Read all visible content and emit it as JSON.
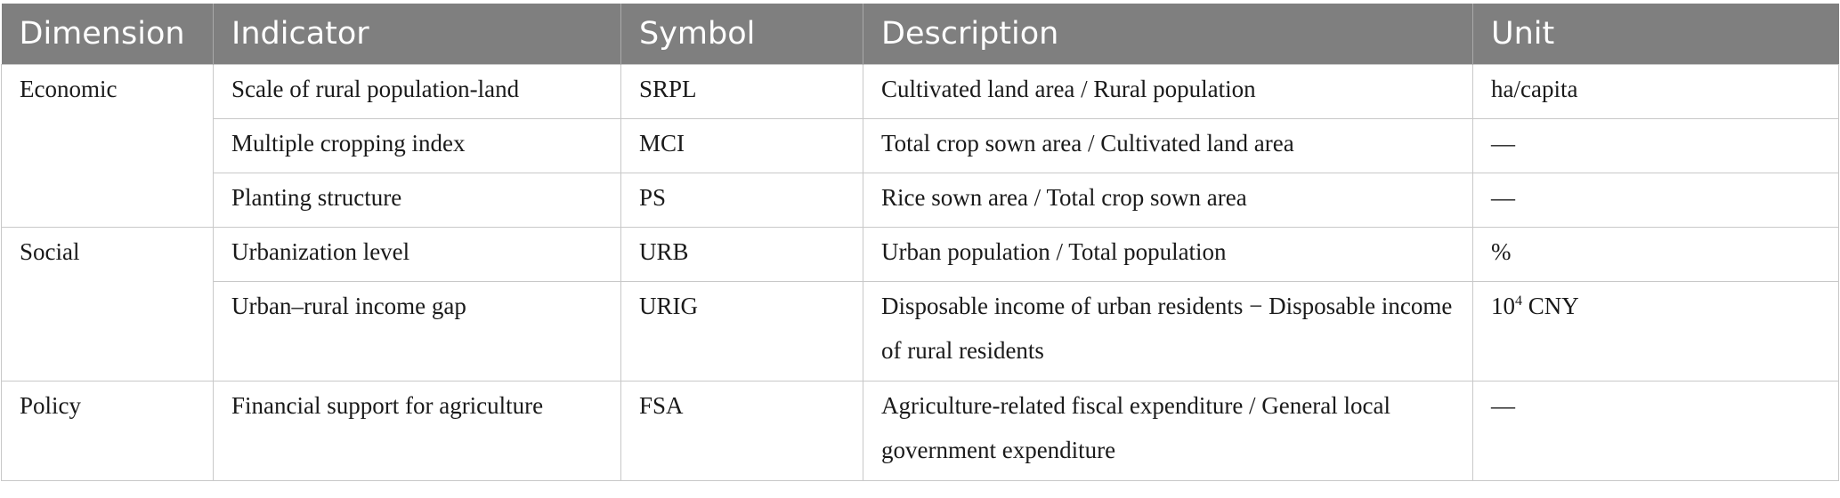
{
  "table": {
    "headers": [
      "Dimension",
      "Indicator",
      "Symbol",
      "Description",
      "Unit"
    ],
    "groups": {
      "economic": "Economic",
      "social": "Social",
      "policy": "Policy"
    },
    "rows": [
      {
        "indicator": "Scale of rural population-land",
        "symbol": "SRPL",
        "description": "Cultivated land area / Rural population",
        "unit": "ha/capita"
      },
      {
        "indicator": "Multiple cropping index",
        "symbol": "MCI",
        "description": "Total crop sown area / Cultivated land area",
        "unit": "—"
      },
      {
        "indicator": "Planting structure",
        "symbol": "PS",
        "description": "Rice sown area / Total crop sown area",
        "unit": "—"
      },
      {
        "indicator": "Urbanization level",
        "symbol": "URB",
        "description": "Urban population / Total population",
        "unit": "%"
      },
      {
        "indicator": "Urban–rural income gap",
        "symbol": "URIG",
        "description": "Disposable income of urban residents − Disposable income of rural residents",
        "unit_base": "10",
        "unit_exp": "4",
        "unit_rest": " CNY"
      },
      {
        "indicator": "Financial support for agriculture",
        "symbol": "FSA",
        "description": "Agriculture-related fiscal expenditure / General local government expenditure",
        "unit": "—"
      }
    ]
  }
}
